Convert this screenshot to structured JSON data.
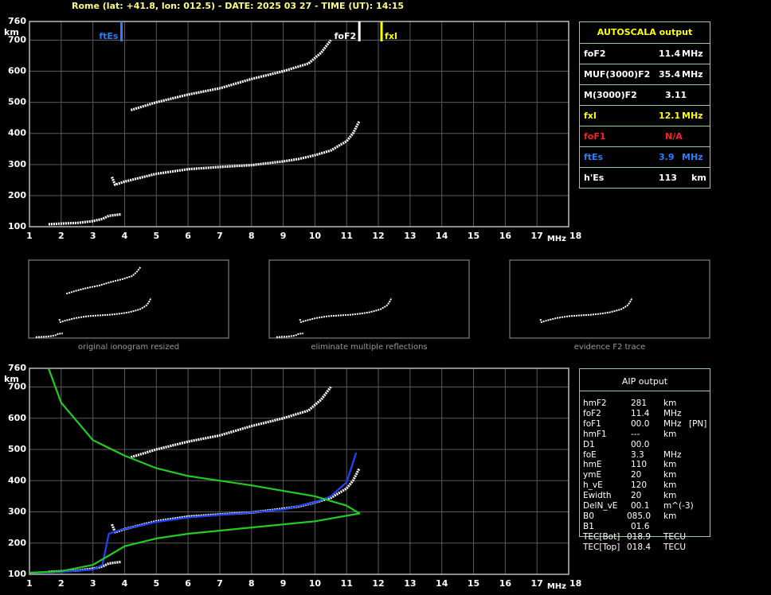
{
  "header": {
    "title": "Rome (lat: +41.8, lon: 012.5) - DATE: 2025 03 27 - TIME (UT): 14:15"
  },
  "chart_data": [
    {
      "type": "ionogram",
      "ylabel": "km",
      "x_unit": "MHz",
      "xlim": [
        1,
        18
      ],
      "xticks": [
        1,
        2,
        3,
        4,
        5,
        6,
        7,
        8,
        9,
        10,
        11,
        12,
        13,
        14,
        15,
        16,
        17,
        18
      ],
      "ylim": [
        100,
        760
      ],
      "yticks": [
        100,
        200,
        300,
        400,
        500,
        600,
        700,
        760
      ],
      "grid": true,
      "markers": [
        {
          "name": "ftEs",
          "x": 3.9,
          "color": "#2a7fff"
        },
        {
          "name": "foF2",
          "x": 11.4,
          "color": "#ffffff"
        },
        {
          "name": "fxI",
          "x": 12.1,
          "color": "#ffff00"
        }
      ],
      "series": [
        {
          "mode": "dots",
          "color": "#ffffff",
          "x": [
            1.6,
            2.0,
            2.5,
            3.0,
            3.3,
            3.5,
            3.9
          ],
          "values": [
            108,
            110,
            112,
            118,
            125,
            135,
            140
          ]
        },
        {
          "mode": "dots",
          "color": "#ffffff",
          "x": [
            3.6,
            3.7,
            4,
            5,
            6,
            7,
            8,
            9,
            9.5,
            10,
            10.5,
            11,
            11.2,
            11.4
          ],
          "values": [
            260,
            235,
            245,
            270,
            285,
            292,
            298,
            310,
            318,
            330,
            345,
            375,
            400,
            440
          ]
        },
        {
          "mode": "dots",
          "color": "#ffffff",
          "x": [
            4.2,
            5,
            6,
            7,
            8,
            9,
            9.8,
            10.2,
            10.5
          ],
          "values": [
            475,
            500,
            525,
            545,
            575,
            600,
            625,
            660,
            700
          ]
        }
      ]
    },
    {
      "type": "ionogram",
      "ylabel": "km",
      "x_unit": "MHz",
      "xlim": [
        1,
        18
      ],
      "xticks": [
        1,
        2,
        3,
        4,
        5,
        6,
        7,
        8,
        9,
        10,
        11,
        12,
        13,
        14,
        15,
        16,
        17,
        18
      ],
      "ylim": [
        100,
        760
      ],
      "yticks": [
        100,
        200,
        300,
        400,
        500,
        600,
        700,
        760
      ],
      "grid": true,
      "series": [
        {
          "mode": "dots",
          "color": "#ffffff",
          "x": [
            1.6,
            2.0,
            2.5,
            3.0,
            3.3,
            3.5,
            3.9
          ],
          "values": [
            108,
            110,
            112,
            118,
            125,
            135,
            140
          ]
        },
        {
          "mode": "dots",
          "color": "#ffffff",
          "x": [
            3.6,
            3.7,
            4,
            5,
            6,
            7,
            8,
            9,
            9.5,
            10,
            10.5,
            11,
            11.2,
            11.4
          ],
          "values": [
            260,
            235,
            245,
            270,
            285,
            292,
            298,
            310,
            318,
            330,
            345,
            375,
            400,
            440
          ]
        },
        {
          "mode": "dots",
          "color": "#ffffff",
          "x": [
            4.2,
            5,
            6,
            7,
            8,
            9,
            9.8,
            10.2,
            10.5
          ],
          "values": [
            475,
            500,
            525,
            545,
            575,
            600,
            625,
            660,
            700
          ]
        },
        {
          "mode": "line",
          "color": "#2244ff",
          "x": [
            1,
            2,
            3,
            3.3,
            3.5,
            3.8,
            4,
            5,
            6,
            7,
            8,
            9,
            10,
            10.5,
            11,
            11.3
          ],
          "values": [
            105,
            108,
            115,
            130,
            230,
            240,
            245,
            268,
            282,
            290,
            298,
            308,
            330,
            350,
            395,
            490
          ]
        },
        {
          "mode": "line",
          "color": "#22cc22",
          "x": [
            1.6,
            2,
            3,
            4,
            5,
            6,
            8,
            10,
            11,
            11.4,
            10,
            8,
            6,
            5,
            4,
            3.5,
            3,
            2,
            1
          ],
          "values": [
            760,
            650,
            530,
            480,
            440,
            415,
            385,
            350,
            320,
            295,
            270,
            250,
            230,
            215,
            190,
            160,
            130,
            110,
            105
          ]
        }
      ]
    }
  ],
  "thumbnails": [
    "original ionogram resized",
    "eliminate multiple reflections",
    "evidence F2 trace"
  ],
  "autoscala": {
    "title": "AUTOSCALA output",
    "title_color": "#ffff00",
    "rows": [
      {
        "label": "foF2",
        "value": "11.4",
        "unit": "MHz",
        "color": "#ffffff"
      },
      {
        "label": "MUF(3000)F2",
        "value": "35.4",
        "unit": "MHz",
        "color": "#ffffff"
      },
      {
        "label": "M(3000)F2",
        "value": "3.11",
        "color": "#ffffff"
      },
      {
        "label": "fxI",
        "value": "12.1",
        "unit": "MHz",
        "color": "#ffff00"
      },
      {
        "label": "foF1",
        "value": "N/A",
        "color": "#ff2020"
      },
      {
        "label": "ftEs",
        "value": "3.9",
        "unit": "MHz",
        "color": "#2a7fff"
      },
      {
        "label": "h'Es",
        "value": "113",
        "unit": "km",
        "color": "#ffffff"
      }
    ]
  },
  "aip": {
    "title": "AIP output",
    "rows": [
      {
        "label": "hmF2",
        "value": "281",
        "unit": "km"
      },
      {
        "label": "foF2",
        "value": "11.4",
        "unit": "MHz"
      },
      {
        "label": "foF1",
        "value": "00.0",
        "unit": "MHz",
        "note": "[PN]"
      },
      {
        "label": "hmF1",
        "value": "---",
        "unit": "km"
      },
      {
        "label": "D1",
        "value": "00.0"
      },
      {
        "label": "foE",
        "value": "3.3",
        "unit": "MHz"
      },
      {
        "label": "hmE",
        "value": "110",
        "unit": "km"
      },
      {
        "label": "ymE",
        "value": "20",
        "unit": "km"
      },
      {
        "label": "h_vE",
        "value": "120",
        "unit": "km"
      },
      {
        "label": "Ewidth",
        "value": "20",
        "unit": "km"
      },
      {
        "label": "DelN_vE",
        "value": "00.1",
        "unit": "m^(-3)"
      },
      {
        "label": "B0",
        "value": "085.0",
        "unit": "km"
      },
      {
        "label": "B1",
        "value": "01.6"
      },
      {
        "label": "TEC[Bot]",
        "value": "018.9",
        "unit": "TECU"
      },
      {
        "label": "TEC[Top]",
        "value": "018.4",
        "unit": "TECU"
      }
    ]
  }
}
